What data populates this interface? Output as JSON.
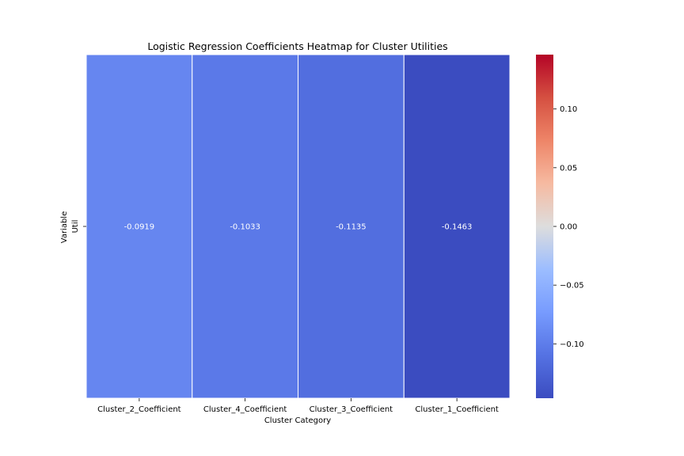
{
  "chart_data": {
    "type": "heatmap",
    "title": "Logistic Regression Coefficients Heatmap for Cluster Utilities",
    "xlabel": "Cluster Category",
    "ylabel": "Variable",
    "x_categories": [
      "Cluster_2_Coefficient",
      "Cluster_4_Coefficient",
      "Cluster_3_Coefficient",
      "Cluster_1_Coefficient"
    ],
    "y_categories": [
      "Util"
    ],
    "values": [
      [
        -0.0919,
        -0.1033,
        -0.1135,
        -0.1463
      ]
    ],
    "cell_labels": [
      "-0.0919",
      "-0.1033",
      "-0.1135",
      "-0.1463"
    ],
    "colormap": "coolwarm",
    "vmin": -0.1463,
    "vmax": 0.1463,
    "colorbar_ticks": [
      0.1,
      0.05,
      0.0,
      -0.05,
      -0.1
    ],
    "colorbar_tick_labels": [
      "0.10",
      "0.05",
      "0.00",
      "−0.05",
      "−0.10"
    ],
    "annotation_color": "#ffffff",
    "cell_border_color": "#ffffff"
  }
}
